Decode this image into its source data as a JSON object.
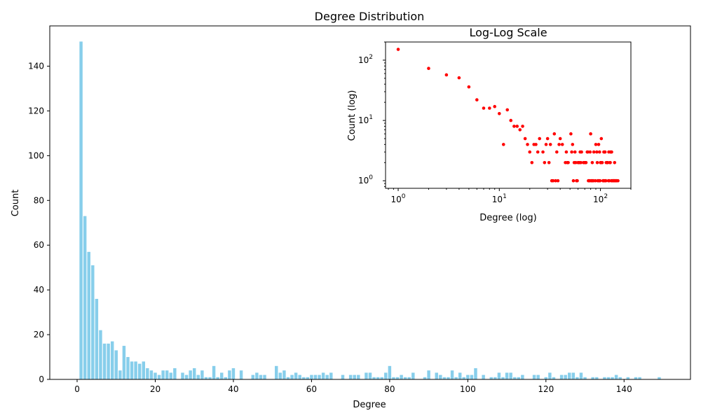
{
  "chart_data": [
    {
      "type": "bar",
      "title": "Degree Distribution",
      "xlabel": "Degree",
      "ylabel": "Count",
      "xlim": [
        -7,
        157
      ],
      "ylim": [
        0,
        158
      ],
      "xticks": [
        0,
        20,
        40,
        60,
        80,
        100,
        120,
        140
      ],
      "yticks": [
        0,
        20,
        40,
        60,
        80,
        100,
        120,
        140
      ],
      "grid": false,
      "bar_color": "#87ceeb",
      "x": [
        1,
        2,
        3,
        4,
        5,
        6,
        7,
        8,
        9,
        10,
        11,
        12,
        13,
        14,
        15,
        16,
        17,
        18,
        19,
        20,
        21,
        22,
        23,
        24,
        25,
        27,
        28,
        29,
        30,
        31,
        32,
        33,
        34,
        35,
        36,
        37,
        38,
        39,
        40,
        42,
        45,
        46,
        47,
        48,
        51,
        52,
        53,
        54,
        55,
        56,
        57,
        58,
        59,
        60,
        61,
        62,
        63,
        64,
        65,
        68,
        70,
        71,
        72,
        74,
        75,
        76,
        77,
        78,
        79,
        80,
        81,
        82,
        83,
        84,
        85,
        86,
        89,
        90,
        92,
        93,
        94,
        95,
        96,
        97,
        98,
        99,
        100,
        101,
        102,
        104,
        106,
        107,
        108,
        109,
        110,
        111,
        112,
        113,
        114,
        117,
        118,
        120,
        121,
        122,
        124,
        125,
        126,
        127,
        128,
        129,
        130,
        132,
        133,
        135,
        136,
        137,
        138,
        139,
        141,
        143,
        144,
        149
      ],
      "values": [
        151,
        73,
        57,
        51,
        36,
        22,
        16,
        16,
        17,
        13,
        4,
        15,
        10,
        8,
        8,
        7,
        8,
        5,
        4,
        3,
        2,
        4,
        4,
        3,
        5,
        3,
        2,
        4,
        5,
        2,
        4,
        1,
        1,
        6,
        1,
        3,
        1,
        4,
        5,
        4,
        2,
        3,
        2,
        2,
        6,
        3,
        4,
        1,
        2,
        3,
        2,
        1,
        1,
        2,
        2,
        2,
        3,
        2,
        3,
        2,
        2,
        2,
        2,
        3,
        3,
        1,
        1,
        1,
        3,
        6,
        1,
        1,
        2,
        1,
        1,
        3,
        1,
        4,
        3,
        2,
        1,
        1,
        4,
        1,
        3,
        1,
        2,
        2,
        5,
        2,
        1,
        1,
        3,
        1,
        3,
        3,
        1,
        1,
        2,
        2,
        2,
        1,
        3,
        1,
        2,
        2,
        3,
        3,
        1,
        3,
        1,
        1,
        1,
        1,
        1,
        1,
        2,
        1,
        1,
        1,
        1,
        1
      ]
    },
    {
      "type": "scatter",
      "title": "Log-Log Scale",
      "xlabel": "Degree (log)",
      "ylabel": "Count (log)",
      "xscale": "log",
      "yscale": "log",
      "xlim": [
        0.75,
        200
      ],
      "ylim": [
        0.75,
        200
      ],
      "xticks": [
        1,
        10,
        100
      ],
      "yticks": [
        1,
        10,
        100
      ],
      "xtick_labels": [
        "10",
        "10",
        "10"
      ],
      "xtick_exponents": [
        "0",
        "1",
        "2"
      ],
      "ytick_labels": [
        "10",
        "10",
        "10"
      ],
      "ytick_exponents": [
        "0",
        "1",
        "2"
      ],
      "grid": false,
      "marker_color": "#ff0000"
    }
  ]
}
